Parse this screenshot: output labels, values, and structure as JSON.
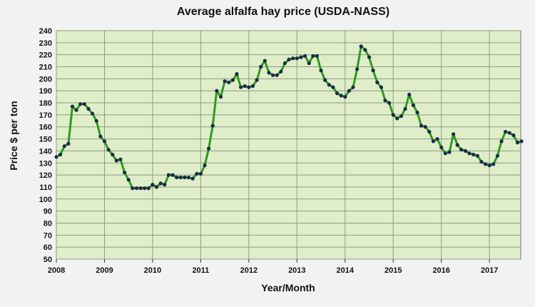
{
  "chart_data": {
    "type": "line",
    "title": "Average alfalfa hay price (USDA-NASS)",
    "xlabel": "Year/Month",
    "ylabel": "Price $ per ton",
    "ylim": [
      50,
      240
    ],
    "yticks": [
      "50",
      "60",
      "70",
      "80",
      "90",
      "100",
      "110",
      "120",
      "130",
      "140",
      "150",
      "160",
      "170",
      "180",
      "190",
      "200",
      "210",
      "220",
      "230",
      "240"
    ],
    "xlim": [
      2008.0,
      2017.65
    ],
    "xticks": [
      "2008",
      "2009",
      "2010",
      "2011",
      "2012",
      "2013",
      "2014",
      "2015",
      "2016",
      "2017"
    ],
    "grid": true,
    "colors": {
      "plot_background": "#dfeec9",
      "line": "#2e9a1e",
      "marker": "#1b2a4a",
      "grid": "#8e9a84"
    },
    "series": [
      {
        "name": "",
        "x": [
          2008.0,
          2008.083,
          2008.167,
          2008.25,
          2008.333,
          2008.417,
          2008.5,
          2008.583,
          2008.667,
          2008.75,
          2008.833,
          2008.917,
          2009.0,
          2009.083,
          2009.167,
          2009.25,
          2009.333,
          2009.417,
          2009.5,
          2009.583,
          2009.667,
          2009.75,
          2009.833,
          2009.917,
          2010.0,
          2010.083,
          2010.167,
          2010.25,
          2010.333,
          2010.417,
          2010.5,
          2010.583,
          2010.667,
          2010.75,
          2010.833,
          2010.917,
          2011.0,
          2011.083,
          2011.167,
          2011.25,
          2011.333,
          2011.417,
          2011.5,
          2011.583,
          2011.667,
          2011.75,
          2011.833,
          2011.917,
          2012.0,
          2012.083,
          2012.167,
          2012.25,
          2012.333,
          2012.417,
          2012.5,
          2012.583,
          2012.667,
          2012.75,
          2012.833,
          2012.917,
          2013.0,
          2013.083,
          2013.167,
          2013.25,
          2013.333,
          2013.417,
          2013.5,
          2013.583,
          2013.667,
          2013.75,
          2013.833,
          2013.917,
          2014.0,
          2014.083,
          2014.167,
          2014.25,
          2014.333,
          2014.417,
          2014.5,
          2014.583,
          2014.667,
          2014.75,
          2014.833,
          2014.917,
          2015.0,
          2015.083,
          2015.167,
          2015.25,
          2015.333,
          2015.417,
          2015.5,
          2015.583,
          2015.667,
          2015.75,
          2015.833,
          2015.917,
          2016.0,
          2016.083,
          2016.167,
          2016.25,
          2016.333,
          2016.417,
          2016.5,
          2016.583,
          2016.667,
          2016.75,
          2016.833,
          2016.917,
          2017.0,
          2017.083,
          2017.167,
          2017.25,
          2017.333,
          2017.417,
          2017.5,
          2017.583,
          2017.667
        ],
        "values": [
          135,
          137,
          144,
          146,
          177,
          174,
          179,
          179,
          175,
          171,
          165,
          152,
          148,
          141,
          137,
          132,
          133,
          122,
          116,
          109,
          109,
          109,
          109,
          109,
          112,
          110,
          113,
          112,
          120,
          120,
          118,
          118,
          118,
          118,
          117,
          121,
          121,
          128,
          142,
          161,
          190,
          185,
          198,
          197,
          199,
          204,
          193,
          194,
          193,
          194,
          199,
          210,
          215,
          205,
          203,
          203,
          206,
          213,
          216,
          217,
          217,
          218,
          219,
          213,
          219,
          219,
          207,
          199,
          195,
          193,
          188,
          186,
          185,
          190,
          193,
          208,
          227,
          224,
          218,
          207,
          197,
          193,
          182,
          180,
          170,
          167,
          169,
          175,
          187,
          178,
          172,
          161,
          160,
          156,
          148,
          150,
          143,
          138,
          139,
          154,
          145,
          141,
          140,
          138,
          137,
          136,
          131,
          129,
          128,
          129,
          136,
          148,
          156,
          155,
          153,
          147,
          148
        ]
      }
    ]
  }
}
